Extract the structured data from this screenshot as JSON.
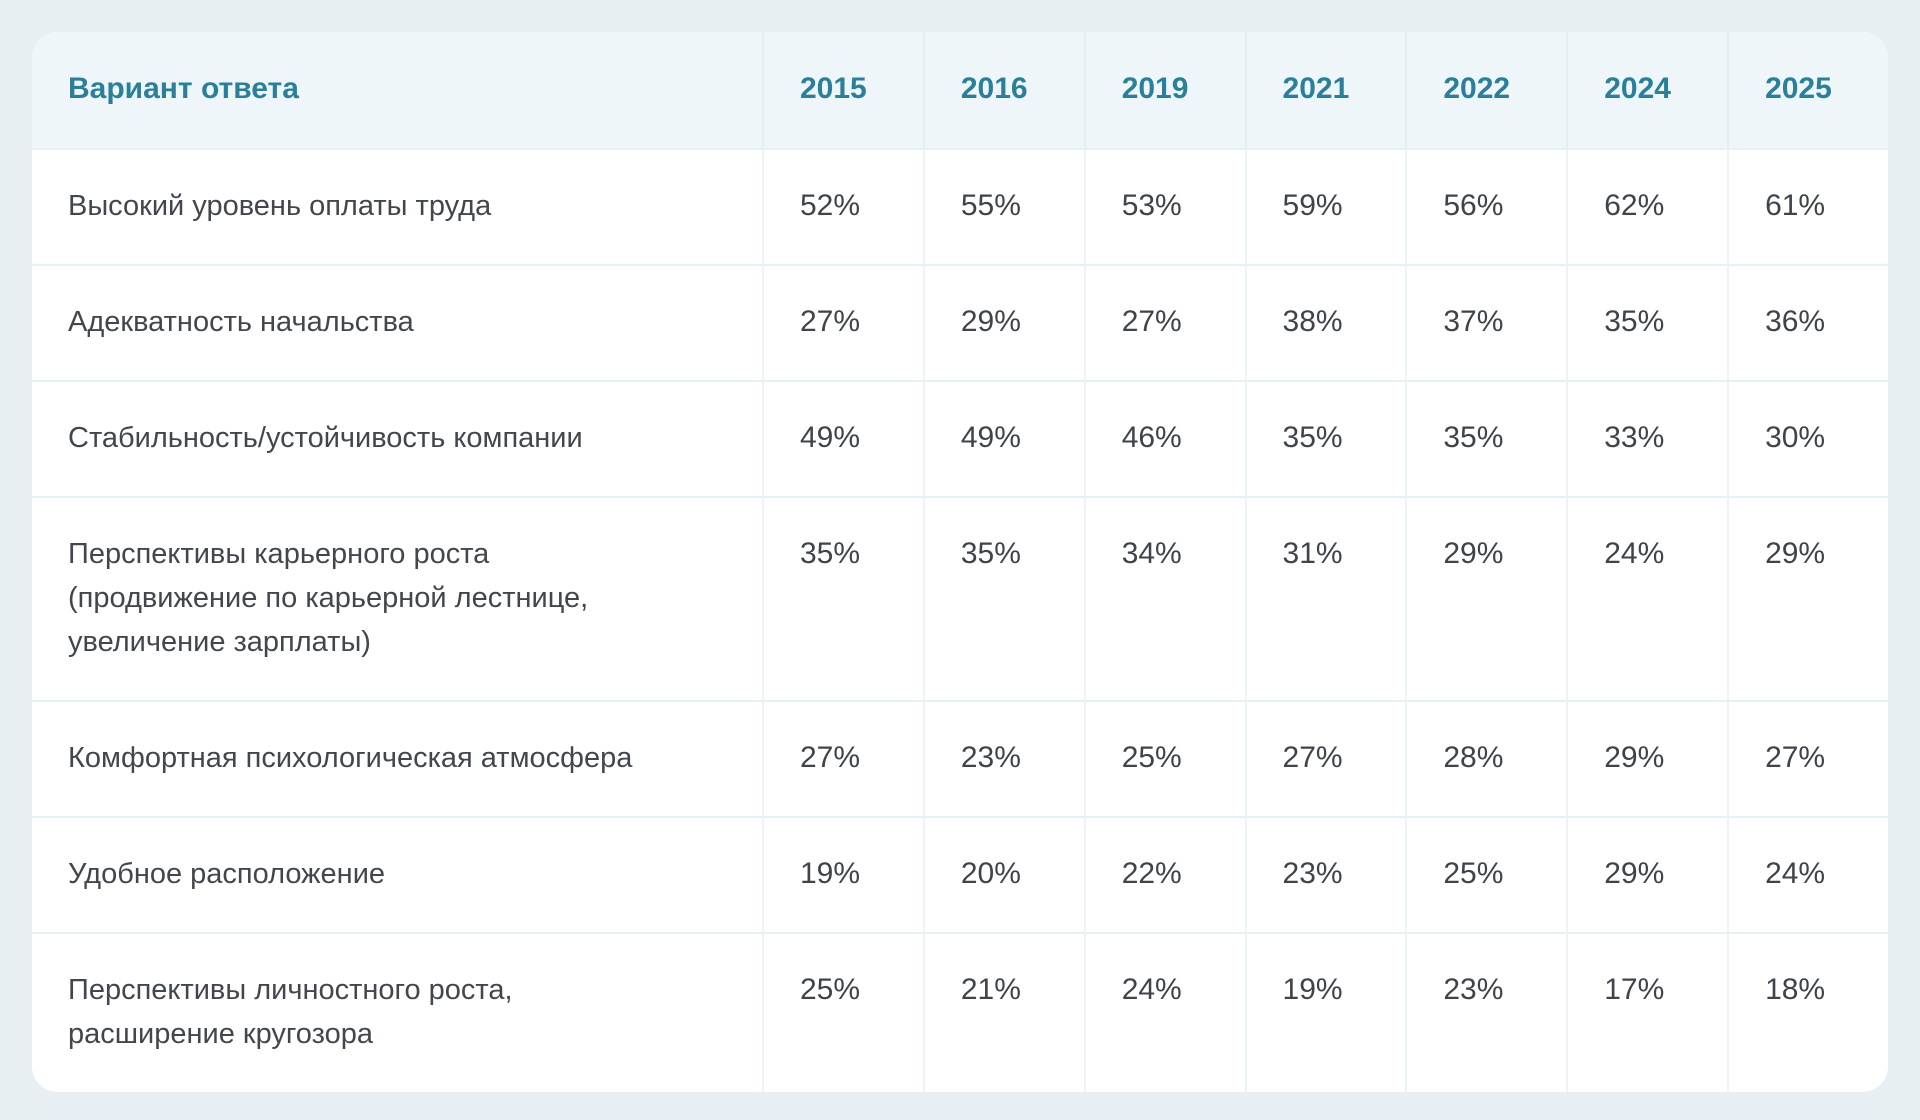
{
  "table": {
    "header": {
      "label": "Вариант ответа",
      "years": [
        "2015",
        "2016",
        "2019",
        "2021",
        "2022",
        "2024",
        "2025"
      ]
    },
    "rows": [
      {
        "label": "Высокий уровень оплаты труда",
        "values": [
          "52%",
          "55%",
          "53%",
          "59%",
          "56%",
          "62%",
          "61%"
        ]
      },
      {
        "label": "Адекватность начальства",
        "values": [
          "27%",
          "29%",
          "27%",
          "38%",
          "37%",
          "35%",
          "36%"
        ]
      },
      {
        "label": "Стабильность/устойчивость компании",
        "values": [
          "49%",
          "49%",
          "46%",
          "35%",
          "35%",
          "33%",
          "30%"
        ]
      },
      {
        "label": "Перспективы карьерного роста\n(продвижение по карьерной лестнице,\nувеличение зарплаты)",
        "values": [
          "35%",
          "35%",
          "34%",
          "31%",
          "29%",
          "24%",
          "29%"
        ]
      },
      {
        "label": "Комфортная психологическая атмосфера",
        "values": [
          "27%",
          "23%",
          "25%",
          "27%",
          "28%",
          "29%",
          "27%"
        ]
      },
      {
        "label": "Удобное расположение",
        "values": [
          "19%",
          "20%",
          "22%",
          "23%",
          "25%",
          "29%",
          "24%"
        ]
      },
      {
        "label": "Перспективы личностного роста,\nрасширение кругозора",
        "values": [
          "25%",
          "21%",
          "24%",
          "19%",
          "23%",
          "17%",
          "18%"
        ]
      }
    ],
    "colors": {
      "accent": "#2a7f9b",
      "header_bg": "#eff6f9",
      "page_bg": "#e7eff2",
      "row_text": "#42474e",
      "value_text": "#3f444b",
      "divider": "#e6f1f5",
      "card_bg": "#ffffff"
    }
  },
  "chart_data": {
    "type": "table",
    "title": "Вариант ответа",
    "categories": [
      2015,
      2016,
      2019,
      2021,
      2022,
      2024,
      2025
    ],
    "unit": "%",
    "series": [
      {
        "name": "Высокий уровень оплаты труда",
        "values": [
          52,
          55,
          53,
          59,
          56,
          62,
          61
        ]
      },
      {
        "name": "Адекватность начальства",
        "values": [
          27,
          29,
          27,
          38,
          37,
          35,
          36
        ]
      },
      {
        "name": "Стабильность/устойчивость компании",
        "values": [
          49,
          49,
          46,
          35,
          35,
          33,
          30
        ]
      },
      {
        "name": "Перспективы карьерного роста (продвижение по карьерной лестнице, увеличение зарплаты)",
        "values": [
          35,
          35,
          34,
          31,
          29,
          24,
          29
        ]
      },
      {
        "name": "Комфортная психологическая атмосфера",
        "values": [
          27,
          23,
          25,
          27,
          28,
          29,
          27
        ]
      },
      {
        "name": "Удобное расположение",
        "values": [
          19,
          20,
          22,
          23,
          25,
          29,
          24
        ]
      },
      {
        "name": "Перспективы личностного роста, расширение кругозора",
        "values": [
          25,
          21,
          24,
          19,
          23,
          17,
          18
        ]
      }
    ],
    "layout": {
      "grid": true,
      "legend": false,
      "value_range": [
        0,
        100
      ]
    }
  }
}
